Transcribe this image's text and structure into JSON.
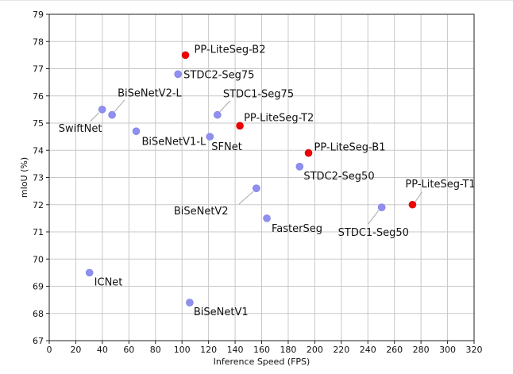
{
  "chart_data": {
    "type": "scatter",
    "title": "",
    "xlabel": "Inference Speed (FPS)",
    "ylabel": "mIoU (%)",
    "xlim": [
      0,
      320
    ],
    "ylim": [
      67,
      79
    ],
    "xticks": [
      "0",
      "20",
      "40",
      "60",
      "80",
      "100",
      "120",
      "140",
      "160",
      "180",
      "200",
      "220",
      "240",
      "260",
      "280",
      "300",
      "320"
    ],
    "yticks": [
      "67",
      "68",
      "69",
      "70",
      "71",
      "72",
      "73",
      "74",
      "75",
      "76",
      "77",
      "78",
      "79"
    ],
    "grid": true,
    "colors": {
      "ours": "#ee0000",
      "others": "#8f8ff0",
      "leader": "#a9a9a9"
    },
    "points": [
      {
        "label": "PP-LiteSeg-B2",
        "x": 102.6,
        "y": 77.5,
        "group": "ours"
      },
      {
        "label": "PP-LiteSeg-T2",
        "x": 143.6,
        "y": 74.9,
        "group": "ours"
      },
      {
        "label": "PP-LiteSeg-B1",
        "x": 195.3,
        "y": 73.9,
        "group": "ours"
      },
      {
        "label": "PP-LiteSeg-T1",
        "x": 273.6,
        "y": 72.0,
        "group": "ours"
      },
      {
        "label": "STDC2-Seg75",
        "x": 97.0,
        "y": 76.8,
        "group": "others"
      },
      {
        "label": "STDC1-Seg75",
        "x": 126.7,
        "y": 75.3,
        "group": "others"
      },
      {
        "label": "STDC2-Seg50",
        "x": 188.6,
        "y": 73.4,
        "group": "others"
      },
      {
        "label": "STDC1-Seg50",
        "x": 250.4,
        "y": 71.9,
        "group": "others"
      },
      {
        "label": "BiSeNetV2-L",
        "x": 47.3,
        "y": 75.3,
        "group": "others"
      },
      {
        "label": "SwiftNet",
        "x": 39.9,
        "y": 75.5,
        "group": "others"
      },
      {
        "label": "BiSeNetV1-L",
        "x": 65.5,
        "y": 74.7,
        "group": "others"
      },
      {
        "label": "SFNet",
        "x": 121.0,
        "y": 74.5,
        "group": "others"
      },
      {
        "label": "BiSeNetV2",
        "x": 156.0,
        "y": 72.6,
        "group": "others"
      },
      {
        "label": "FasterSeg",
        "x": 163.9,
        "y": 71.5,
        "group": "others"
      },
      {
        "label": "ICNet",
        "x": 30.3,
        "y": 69.5,
        "group": "others"
      },
      {
        "label": "BiSeNetV1",
        "x": 105.8,
        "y": 68.4,
        "group": "others"
      }
    ]
  }
}
